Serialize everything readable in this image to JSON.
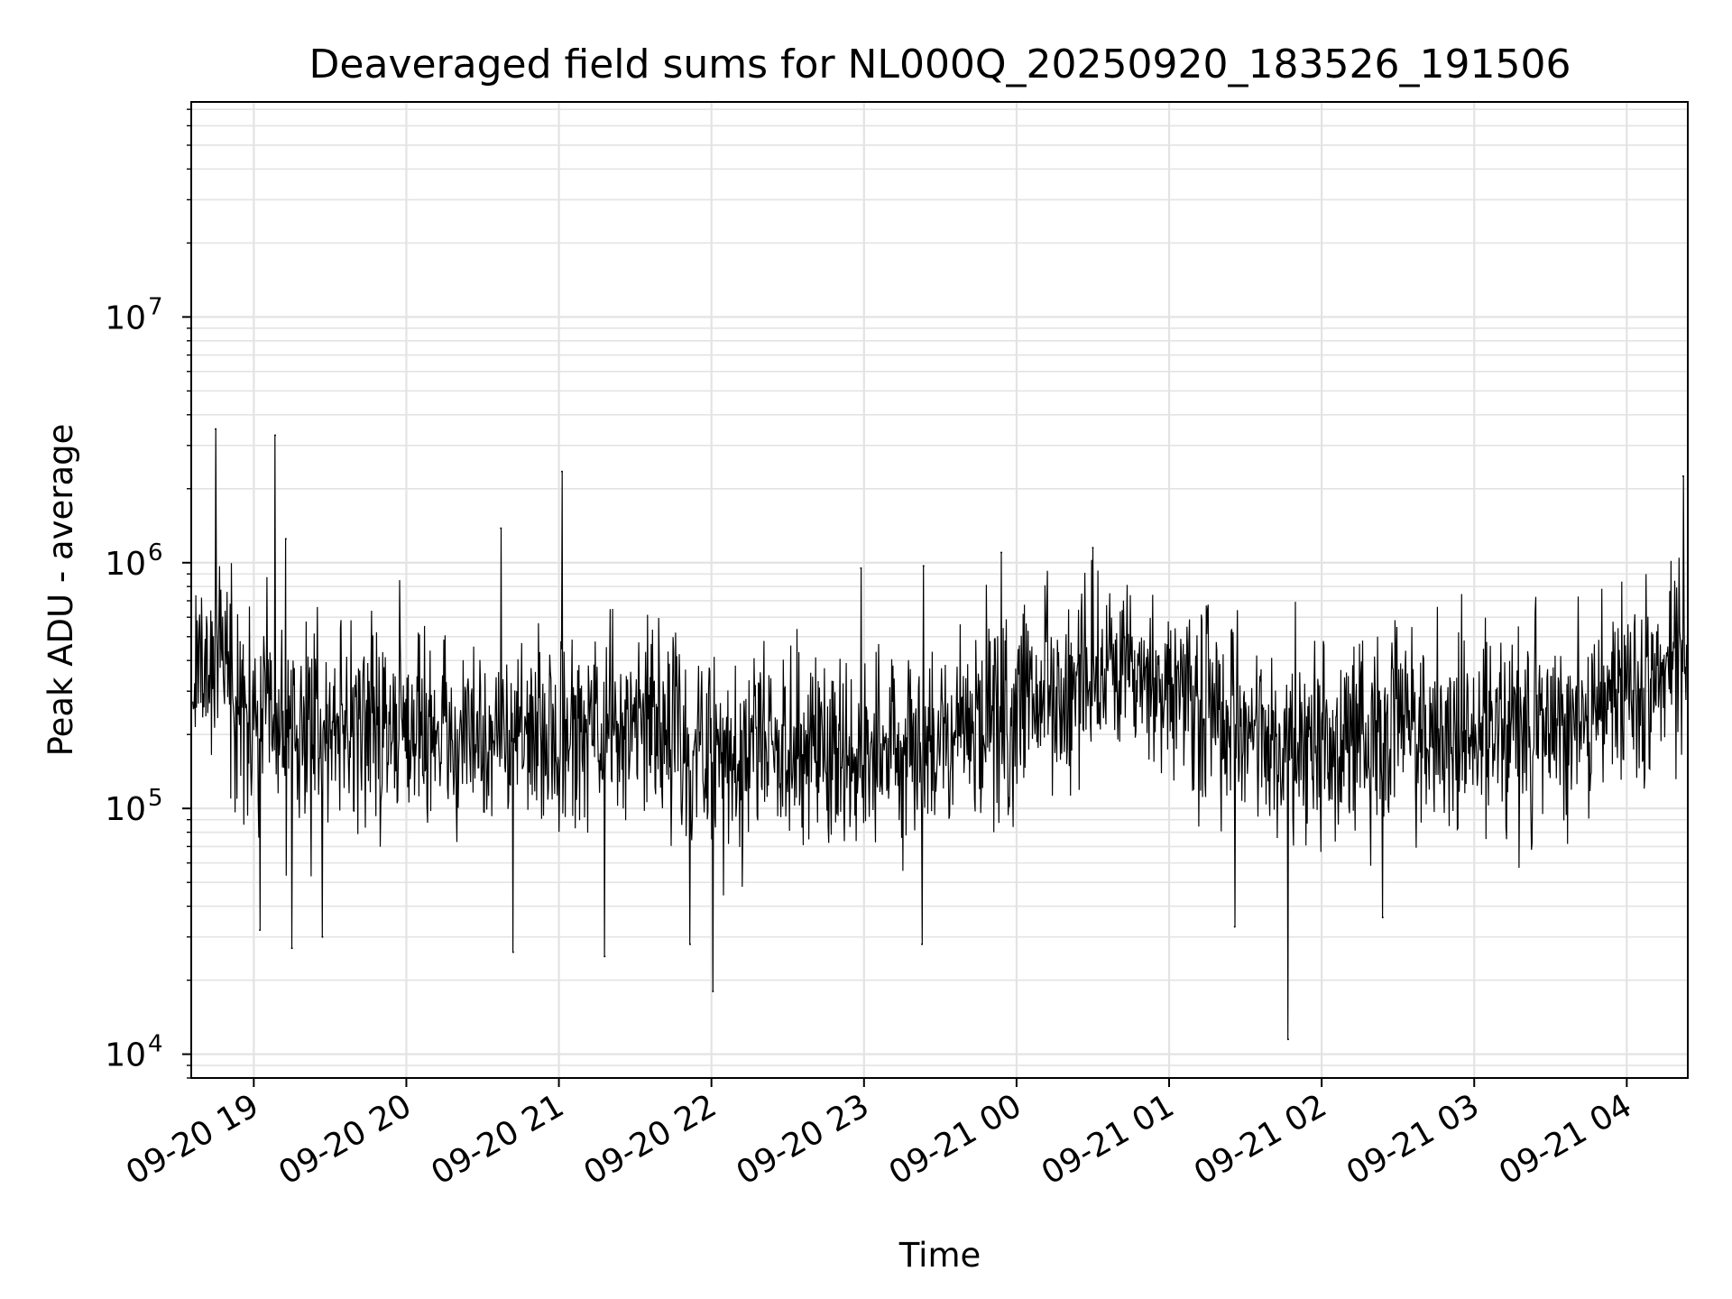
{
  "chart_data": {
    "type": "line",
    "title": "Deaveraged field sums for NL000Q_20250920_183526_191506",
    "xlabel": "Time",
    "ylabel": "Peak ADU - average",
    "yscale": "log",
    "ylim": [
      8000,
      75000000
    ],
    "xlim_hours": [
      18.59,
      28.4
    ],
    "grid": true,
    "x_ticks": [
      {
        "hour": 19,
        "label": "09-20 19"
      },
      {
        "hour": 20,
        "label": "09-20 20"
      },
      {
        "hour": 21,
        "label": "09-20 21"
      },
      {
        "hour": 22,
        "label": "09-20 22"
      },
      {
        "hour": 23,
        "label": "09-20 23"
      },
      {
        "hour": 24,
        "label": "09-21 00"
      },
      {
        "hour": 25,
        "label": "09-21 01"
      },
      {
        "hour": 26,
        "label": "09-21 02"
      },
      {
        "hour": 27,
        "label": "09-21 03"
      },
      {
        "hour": 28,
        "label": "09-21 04"
      }
    ],
    "y_ticks": [
      {
        "value": 10000,
        "base": "10",
        "exp": "4"
      },
      {
        "value": 100000,
        "base": "10",
        "exp": "5"
      },
      {
        "value": 1000000,
        "base": "10",
        "exp": "6"
      },
      {
        "value": 10000000,
        "base": "10",
        "exp": "7"
      }
    ],
    "baseline": {
      "hours": [
        18.6,
        18.75,
        19.0,
        19.5,
        20.0,
        20.5,
        21.0,
        21.5,
        22.0,
        22.5,
        23.0,
        23.5,
        24.0,
        24.5,
        25.0,
        25.5,
        26.0,
        26.5,
        27.0,
        27.5,
        28.0,
        28.4
      ],
      "values": [
        280000,
        500000,
        200000,
        230000,
        210000,
        200000,
        190000,
        230000,
        160000,
        200000,
        170000,
        180000,
        260000,
        330000,
        300000,
        200000,
        170000,
        230000,
        200000,
        220000,
        300000,
        380000
      ]
    },
    "series": [
      {
        "name": "Peak ADU - average",
        "color": "#000000",
        "spikes": [
          {
            "hour": 18.75,
            "value": 3500000
          },
          {
            "hour": 19.14,
            "value": 3300000
          },
          {
            "hour": 19.21,
            "value": 1250000
          },
          {
            "hour": 20.62,
            "value": 1380000
          },
          {
            "hour": 21.02,
            "value": 2350000
          },
          {
            "hour": 22.98,
            "value": 950000
          },
          {
            "hour": 23.39,
            "value": 970000
          },
          {
            "hour": 23.9,
            "value": 1100000
          },
          {
            "hour": 24.5,
            "value": 1150000
          },
          {
            "hour": 28.37,
            "value": 2250000
          }
        ],
        "dips": [
          {
            "hour": 19.04,
            "value": 32000
          },
          {
            "hour": 19.25,
            "value": 27000
          },
          {
            "hour": 19.45,
            "value": 30000
          },
          {
            "hour": 20.7,
            "value": 26000
          },
          {
            "hour": 21.3,
            "value": 25000
          },
          {
            "hour": 21.86,
            "value": 28000
          },
          {
            "hour": 22.01,
            "value": 18000
          },
          {
            "hour": 23.38,
            "value": 28000
          },
          {
            "hour": 25.43,
            "value": 33000
          },
          {
            "hour": 25.78,
            "value": 11500
          },
          {
            "hour": 26.4,
            "value": 36000
          }
        ]
      }
    ]
  }
}
